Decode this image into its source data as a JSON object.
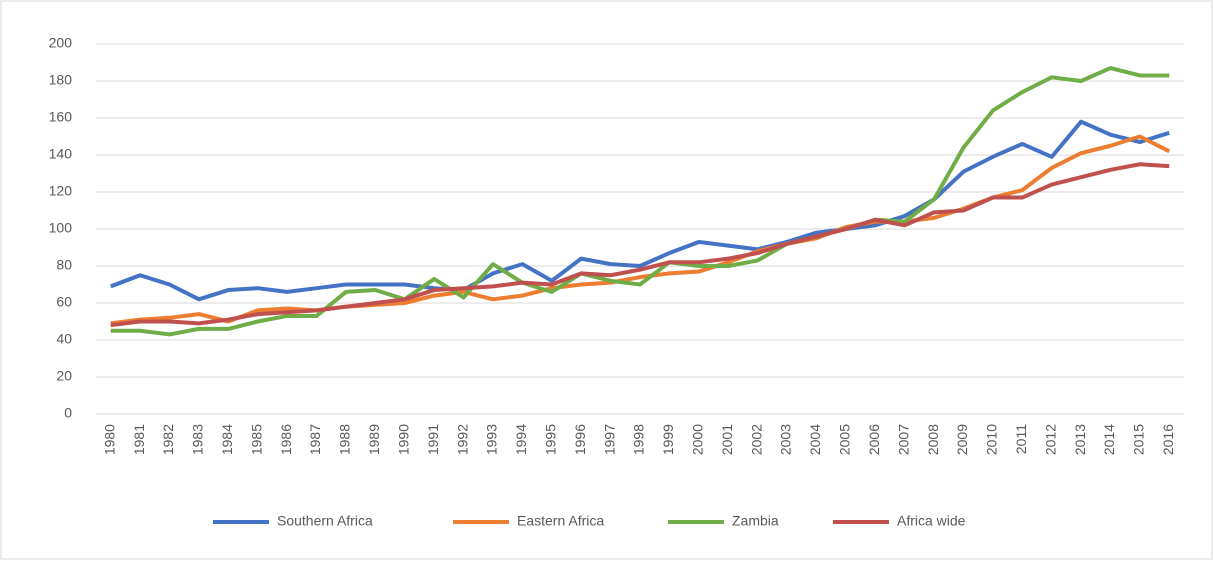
{
  "chart_data": {
    "type": "line",
    "categories": [
      "1980",
      "1981",
      "1982",
      "1983",
      "1984",
      "1985",
      "1986",
      "1987",
      "1988",
      "1989",
      "1990",
      "1991",
      "1992",
      "1993",
      "1994",
      "1995",
      "1996",
      "1997",
      "1998",
      "1999",
      "2000",
      "2001",
      "2002",
      "2003",
      "2004",
      "2005",
      "2006",
      "2007",
      "2008",
      "2009",
      "2010",
      "2011",
      "2012",
      "2013",
      "2014",
      "2015",
      "2016"
    ],
    "series": [
      {
        "name": "Southern Africa",
        "color": "#4472c4",
        "values": [
          69,
          75,
          70,
          62,
          67,
          68,
          66,
          68,
          70,
          70,
          70,
          68,
          67,
          76,
          81,
          72,
          84,
          81,
          80,
          87,
          93,
          91,
          89,
          93,
          98,
          100,
          102,
          107,
          116,
          131,
          139,
          146,
          139,
          158,
          151,
          147,
          152
        ]
      },
      {
        "name": "Eastern Africa",
        "color": "#ed7d31",
        "values": [
          49,
          51,
          52,
          54,
          50,
          56,
          57,
          56,
          58,
          59,
          60,
          64,
          66,
          62,
          64,
          68,
          70,
          71,
          74,
          76,
          77,
          82,
          88,
          92,
          95,
          101,
          104,
          104,
          106,
          111,
          117,
          121,
          133,
          141,
          145,
          150,
          142
        ]
      },
      {
        "name": "Zambia",
        "color": "#70ad47",
        "values": [
          45,
          45,
          43,
          46,
          46,
          50,
          53,
          53,
          66,
          67,
          62,
          73,
          63,
          81,
          71,
          66,
          76,
          72,
          70,
          82,
          80,
          80,
          83,
          92,
          96,
          100,
          105,
          104,
          116,
          144,
          164,
          174,
          182,
          180,
          187,
          183,
          183
        ]
      },
      {
        "name": "Africa wide",
        "color": "#c0504d",
        "values": [
          48,
          50,
          50,
          49,
          51,
          54,
          55,
          56,
          58,
          60,
          62,
          67,
          68,
          69,
          71,
          70,
          76,
          75,
          78,
          82,
          82,
          84,
          87,
          92,
          96,
          100,
          105,
          102,
          109,
          110,
          117,
          117,
          124,
          128,
          132,
          135,
          134
        ]
      }
    ],
    "ylim": [
      0,
      200
    ],
    "yticks": [
      0,
      20,
      40,
      60,
      80,
      100,
      120,
      140,
      160,
      180,
      200
    ],
    "grid": true,
    "legend": "bottom"
  }
}
